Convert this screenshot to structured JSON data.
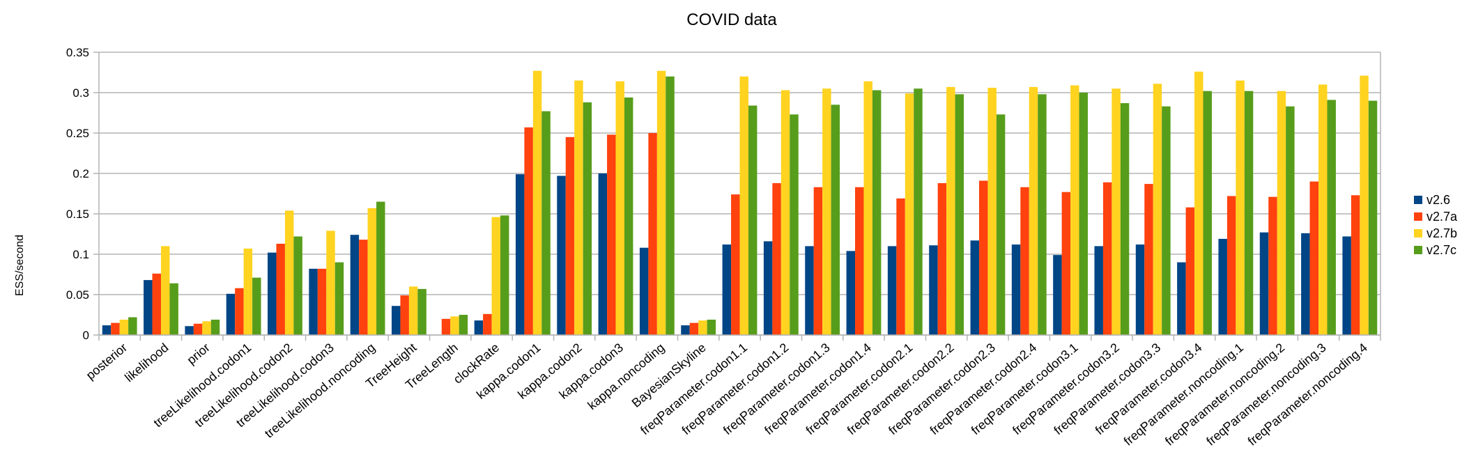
{
  "chart_data": {
    "type": "bar",
    "title": "COVID data",
    "xlabel": "",
    "ylabel": "ESS/second",
    "ylim": [
      0,
      0.35
    ],
    "yticks": [
      "0",
      "0.05",
      "0.1",
      "0.15",
      "0.2",
      "0.25",
      "0.3",
      "0.35"
    ],
    "grid": "horizontal",
    "legend_position": "right",
    "categories": [
      "posterior",
      "likelihood",
      "prior",
      "treeLikelihood.codon1",
      "treeLikelihood.codon2",
      "treeLikelihood.codon3",
      "treeLikelihood.noncoding",
      "TreeHeight",
      "TreeLength",
      "clockRate",
      "kappa.codon1",
      "kappa.codon2",
      "kappa.codon3",
      "kappa.noncoding",
      "BayesianSkyline",
      "freqParameter.codon1.1",
      "freqParameter.codon1.2",
      "freqParameter.codon1.3",
      "freqParameter.codon1.4",
      "freqParameter.codon2.1",
      "freqParameter.codon2.2",
      "freqParameter.codon2.3",
      "freqParameter.codon2.4",
      "freqParameter.codon3.1",
      "freqParameter.codon3.2",
      "freqParameter.codon3.3",
      "freqParameter.codon3.4",
      "freqParameter.noncoding.1",
      "freqParameter.noncoding.2",
      "freqParameter.noncoding.3",
      "freqParameter.noncoding.4"
    ],
    "series": [
      {
        "name": "v2.6",
        "color": "#004586",
        "values": [
          0.012,
          0.068,
          0.011,
          0.051,
          0.102,
          0.082,
          0.124,
          0.036,
          0.0,
          0.018,
          0.199,
          0.197,
          0.2,
          0.108,
          0.012,
          0.112,
          0.116,
          0.11,
          0.104,
          0.11,
          0.111,
          0.117,
          0.112,
          0.099,
          0.11,
          0.112,
          0.09,
          0.119,
          0.127,
          0.126,
          0.122
        ]
      },
      {
        "name": "v2.7a",
        "color": "#ff420e",
        "values": [
          0.015,
          0.076,
          0.014,
          0.058,
          0.113,
          0.082,
          0.118,
          0.049,
          0.02,
          0.026,
          0.257,
          0.245,
          0.248,
          0.25,
          0.015,
          0.174,
          0.188,
          0.183,
          0.183,
          0.169,
          0.188,
          0.191,
          0.183,
          0.177,
          0.189,
          0.187,
          0.158,
          0.172,
          0.171,
          0.19,
          0.173
        ]
      },
      {
        "name": "v2.7b",
        "color": "#ffd320",
        "values": [
          0.019,
          0.11,
          0.017,
          0.107,
          0.154,
          0.129,
          0.157,
          0.06,
          0.023,
          0.146,
          0.327,
          0.315,
          0.314,
          0.327,
          0.018,
          0.32,
          0.303,
          0.305,
          0.314,
          0.299,
          0.307,
          0.306,
          0.307,
          0.309,
          0.305,
          0.311,
          0.326,
          0.315,
          0.302,
          0.31,
          0.321
        ]
      },
      {
        "name": "v2.7c",
        "color": "#579d1c",
        "values": [
          0.022,
          0.064,
          0.019,
          0.071,
          0.122,
          0.09,
          0.165,
          0.057,
          0.025,
          0.148,
          0.277,
          0.288,
          0.294,
          0.32,
          0.019,
          0.284,
          0.273,
          0.285,
          0.303,
          0.305,
          0.298,
          0.273,
          0.298,
          0.3,
          0.287,
          0.283,
          0.302,
          0.302,
          0.283,
          0.291,
          0.29
        ]
      }
    ]
  }
}
